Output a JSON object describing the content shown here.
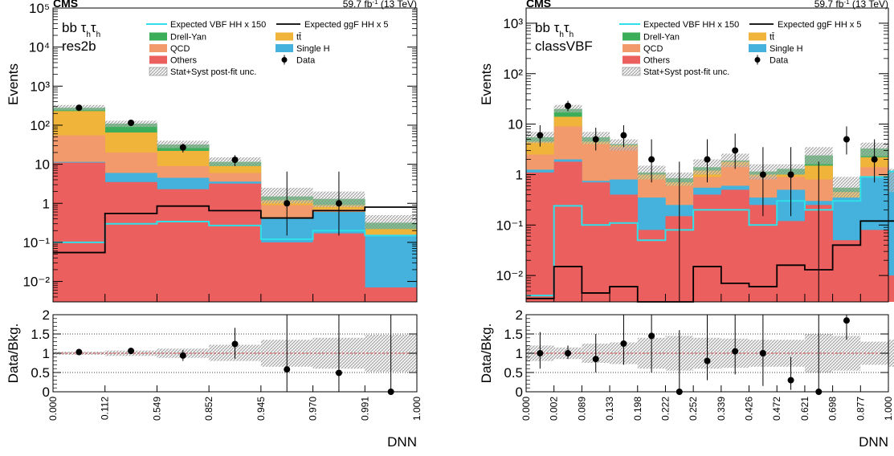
{
  "colors": {
    "drell_yan": "#3cae5a",
    "ttbar": "#f0b43a",
    "qcd": "#f29a6b",
    "single_h": "#44b2dc",
    "others": "#ec5f5f",
    "vbf_line": "#2fe0e8",
    "ggf_line": "#000000",
    "data": "#000000",
    "unc_band": "#b8b8b8",
    "ratio_line": "#d04040"
  },
  "common": {
    "experiment": "CMS",
    "lumi": "59.7 fb",
    "lumi_sup": "-1",
    "energy": "(13 TeV)",
    "channel_prefix": "bb τ",
    "channel_sub": "h",
    "channel_mid": "τ",
    "xlabel": "DNN",
    "ylabel_top": "Events",
    "ylabel_ratio": "Data/Bkg.",
    "legend": {
      "vbf": "Expected VBF HH x 150",
      "ggf": "Expected ggF HH x 5",
      "dy": "Drell-Yan",
      "tt": "tt̄",
      "qcd": "QCD",
      "singleh": "Single H",
      "others": "Others",
      "data": "Data",
      "unc": "Stat+Syst post-fit unc."
    }
  },
  "chart_data": [
    {
      "type": "bar",
      "category": "res2b",
      "y_scale": "log",
      "ylim": [
        0.003,
        100000
      ],
      "y_tick_labels": [
        "10⁻²",
        "10⁻¹",
        "1",
        "10",
        "10²",
        "10³",
        "10⁴",
        "10⁵"
      ],
      "bin_edge_labels": [
        "0.000",
        "0.112",
        "0.549",
        "0.852",
        "0.945",
        "0.970",
        "0.991",
        "1.000"
      ],
      "stack": {
        "others": [
          11,
          3.5,
          2.3,
          3.2,
          0.1,
          0.17,
          0.007
        ],
        "single_h": [
          11.5,
          6,
          4.5,
          3.6,
          0.4,
          0.6,
          0.15
        ],
        "qcd": [
          55,
          20,
          9,
          6,
          0.9,
          0.7,
          0.16
        ],
        "ttbar": [
          230,
          65,
          22,
          9,
          1.2,
          0.9,
          0.22
        ],
        "drell_yan": [
          280,
          110,
          32,
          11.5,
          1.5,
          1.3,
          0.32
        ]
      },
      "unc_hi": [
        330,
        130,
        40,
        15,
        2.5,
        2,
        0.5
      ],
      "unc_lo": [
        240,
        90,
        26,
        9,
        1,
        0.8,
        0.22
      ],
      "ggf_line": [
        0.055,
        0.55,
        0.85,
        0.65,
        0.42,
        0.65,
        0.8
      ],
      "vbf_line": [
        0.1,
        0.3,
        0.34,
        0.27,
        0.12,
        0.2,
        0.15
      ],
      "data": {
        "x_bins": [
          0,
          1,
          2,
          3,
          4,
          5
        ],
        "values": [
          280,
          115,
          27,
          13,
          1,
          1
        ],
        "err_lo": [
          260,
          100,
          20,
          9,
          0.15,
          0.15
        ],
        "err_hi": [
          300,
          130,
          34,
          17,
          6.5,
          6.5
        ]
      },
      "ratio": {
        "ylim": [
          0,
          2
        ],
        "y_tick_labels": [
          "0",
          "0.5",
          "1",
          "1.5",
          "2"
        ],
        "values": [
          1.03,
          1.06,
          0.94,
          1.24,
          0.58,
          0.49,
          0
        ],
        "err_lo": [
          0.98,
          0.99,
          0.8,
          0.86,
          0,
          0,
          0
        ],
        "err_hi": [
          1.07,
          1.14,
          1.08,
          1.66,
          2,
          2,
          2
        ],
        "band_lo": [
          0.96,
          0.93,
          0.88,
          0.8,
          0.65,
          0.6,
          0.52
        ],
        "band_hi": [
          1.04,
          1.07,
          1.12,
          1.22,
          1.35,
          1.4,
          1.48
        ]
      }
    },
    {
      "type": "bar",
      "category": "classVBF",
      "y_scale": "log",
      "ylim": [
        0.003,
        2000
      ],
      "y_tick_labels": [
        "10⁻²",
        "10⁻¹",
        "1",
        "10",
        "10²",
        "10³"
      ],
      "bin_edge_labels": [
        "0.000",
        "0.002",
        "0.089",
        "0.133",
        "0.198",
        "0.222",
        "0.252",
        "0.339",
        "0.426",
        "0.472",
        "0.621",
        "0.698",
        "0.877",
        "1.000"
      ],
      "stack": {
        "others": [
          1.1,
          1.8,
          0.7,
          0.4,
          0.08,
          0.15,
          0.4,
          0.5,
          0.25,
          0.12,
          0.25,
          0.05,
          0.08,
          0.01
        ],
        "single_h": [
          1.25,
          2.0,
          0.75,
          0.8,
          0.35,
          0.25,
          0.55,
          0.6,
          0.35,
          0.5,
          0.3,
          0.35,
          0.9,
          1.2
        ],
        "qcd": [
          2.5,
          9,
          4,
          3.5,
          0.8,
          0.6,
          0.9,
          1.5,
          0.9,
          0.9,
          0.8,
          0.35,
          1.4,
          0.35
        ],
        "ttbar": [
          4.5,
          14,
          4.5,
          3.8,
          1.0,
          0.7,
          1.2,
          1.8,
          1.0,
          1.0,
          1.5,
          0.45,
          2.2,
          0.6
        ],
        "drell_yan": [
          5.5,
          20,
          5.5,
          4.0,
          1.1,
          0.85,
          1.4,
          1.9,
          1.15,
          1.3,
          2.4,
          0.55,
          3.3,
          0.75
        ]
      },
      "unc_hi": [
        7,
        24,
        7,
        5,
        1.5,
        1.1,
        2,
        2.6,
        1.6,
        1.6,
        3.5,
        0.9,
        4.3,
        1.3
      ],
      "unc_lo": [
        4.2,
        17,
        4,
        3,
        0.8,
        0.6,
        1,
        1.4,
        0.8,
        1,
        1.6,
        0.35,
        2.3,
        0.45
      ],
      "ggf_line": [
        0.0035,
        0.015,
        0.0045,
        0.006,
        0.003,
        0.003,
        0.015,
        0.007,
        0.006,
        0.016,
        0.013,
        0.04,
        0.12,
        0.12
      ],
      "vbf_line": [
        0.004,
        0.24,
        0.1,
        0.11,
        0.05,
        0.08,
        0.2,
        0.2,
        0.1,
        0.3,
        0.2,
        0.3,
        0.9,
        1.15
      ],
      "data": {
        "x_bins": [
          0,
          1,
          2,
          3,
          4,
          5,
          6,
          7,
          8,
          9,
          10,
          11,
          12
        ],
        "values": [
          6,
          23,
          5,
          6,
          2,
          0,
          2,
          3,
          1,
          1,
          0,
          5,
          2
        ],
        "err_lo": [
          3.6,
          18,
          3,
          3.5,
          0.7,
          0,
          0.7,
          1.3,
          0.15,
          0.15,
          0,
          2.5,
          0.7
        ],
        "err_hi": [
          9.5,
          29,
          8.5,
          9.5,
          5,
          1.8,
          5,
          6.5,
          3.5,
          3.5,
          1.8,
          9,
          5
        ]
      },
      "ratio": {
        "ylim": [
          0,
          2
        ],
        "y_tick_labels": [
          "0",
          "0.5",
          "1",
          "1.5",
          "2"
        ],
        "values": [
          1.0,
          1.0,
          0.85,
          1.25,
          1.45,
          0,
          0.8,
          1.05,
          1.0,
          0.3,
          0,
          1.85,
          null
        ],
        "err_lo": [
          0.6,
          0.85,
          0.5,
          0.7,
          0.5,
          0,
          0.3,
          0.45,
          0.15,
          0.05,
          0,
          1.35,
          null
        ],
        "err_hi": [
          1.55,
          1.2,
          1.5,
          2,
          2,
          1.6,
          2,
          2,
          2,
          0.9,
          2,
          2,
          null
        ],
        "band_lo": [
          0.8,
          0.85,
          0.75,
          0.72,
          0.6,
          0.55,
          0.6,
          0.62,
          0.65,
          0.65,
          0.5,
          0.55,
          0.7,
          0.65
        ],
        "band_hi": [
          1.2,
          1.15,
          1.25,
          1.28,
          1.4,
          1.45,
          1.4,
          1.38,
          1.35,
          1.35,
          1.5,
          1.45,
          1.3,
          1.35
        ]
      }
    }
  ]
}
